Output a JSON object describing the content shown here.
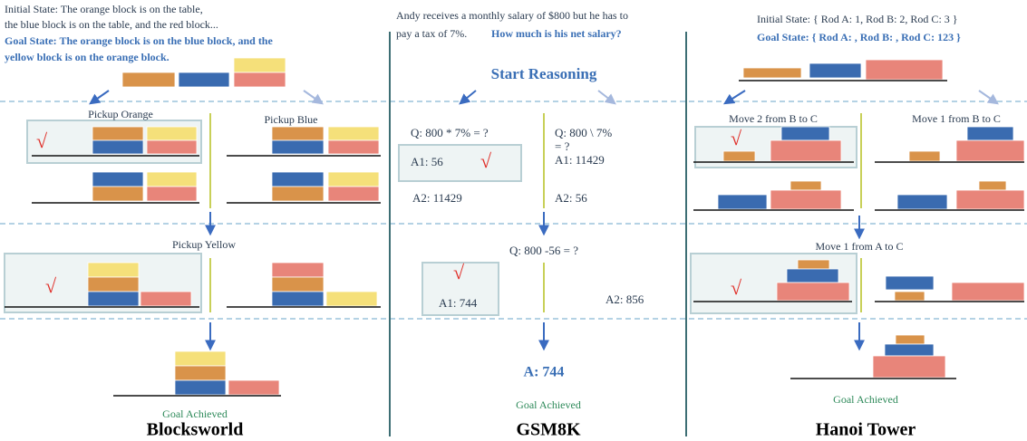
{
  "blocksworld": {
    "initial_state": [
      "Initial State: The orange block is on the table,",
      "the blue block is on the table, and the red block..."
    ],
    "goal_state": [
      "Goal State: The orange block is on the blue block, and the",
      "yellow block is on the orange block."
    ],
    "steps": [
      "Pickup Orange",
      "Pickup Blue",
      "Pickup Yellow"
    ],
    "check": "√",
    "goal": "Goal Achieved",
    "title": "Blocksworld"
  },
  "gsm8k": {
    "question": [
      "Andy receives a monthly salary of $800 but he has to",
      "pay a tax of 7%."
    ],
    "question_ask": "How much is his net salary?",
    "start": "Start Reasoning",
    "branches": [
      {
        "question": "Q: 800 * 7% = ?",
        "a1": "A1: 56",
        "a2": "A2: 11429"
      },
      {
        "question": [
          "Q: 800 \\ 7%",
          "= ?"
        ],
        "a1": "A1: 11429",
        "a2": "A2: 56"
      }
    ],
    "step2": {
      "question": "Q: 800 -56 = ?",
      "a1": "A1: 744",
      "a2": "A2: 856"
    },
    "answer": "A: 744",
    "check": "√",
    "goal": "Goal Achieved",
    "title": "GSM8K"
  },
  "hanoi": {
    "initial_state": "Initial State: { Rod A: 1, Rod B: 2, Rod C: 3 }",
    "goal_state": "Goal State:  { Rod A:  , Rod B: , Rod C: 123 }",
    "steps": [
      "Move 2 from B to C",
      "Move 1 from B to C",
      "Move 1 from A to C"
    ],
    "check": "√",
    "goal": "Goal Achieved",
    "title": "Hanoi Tower"
  }
}
